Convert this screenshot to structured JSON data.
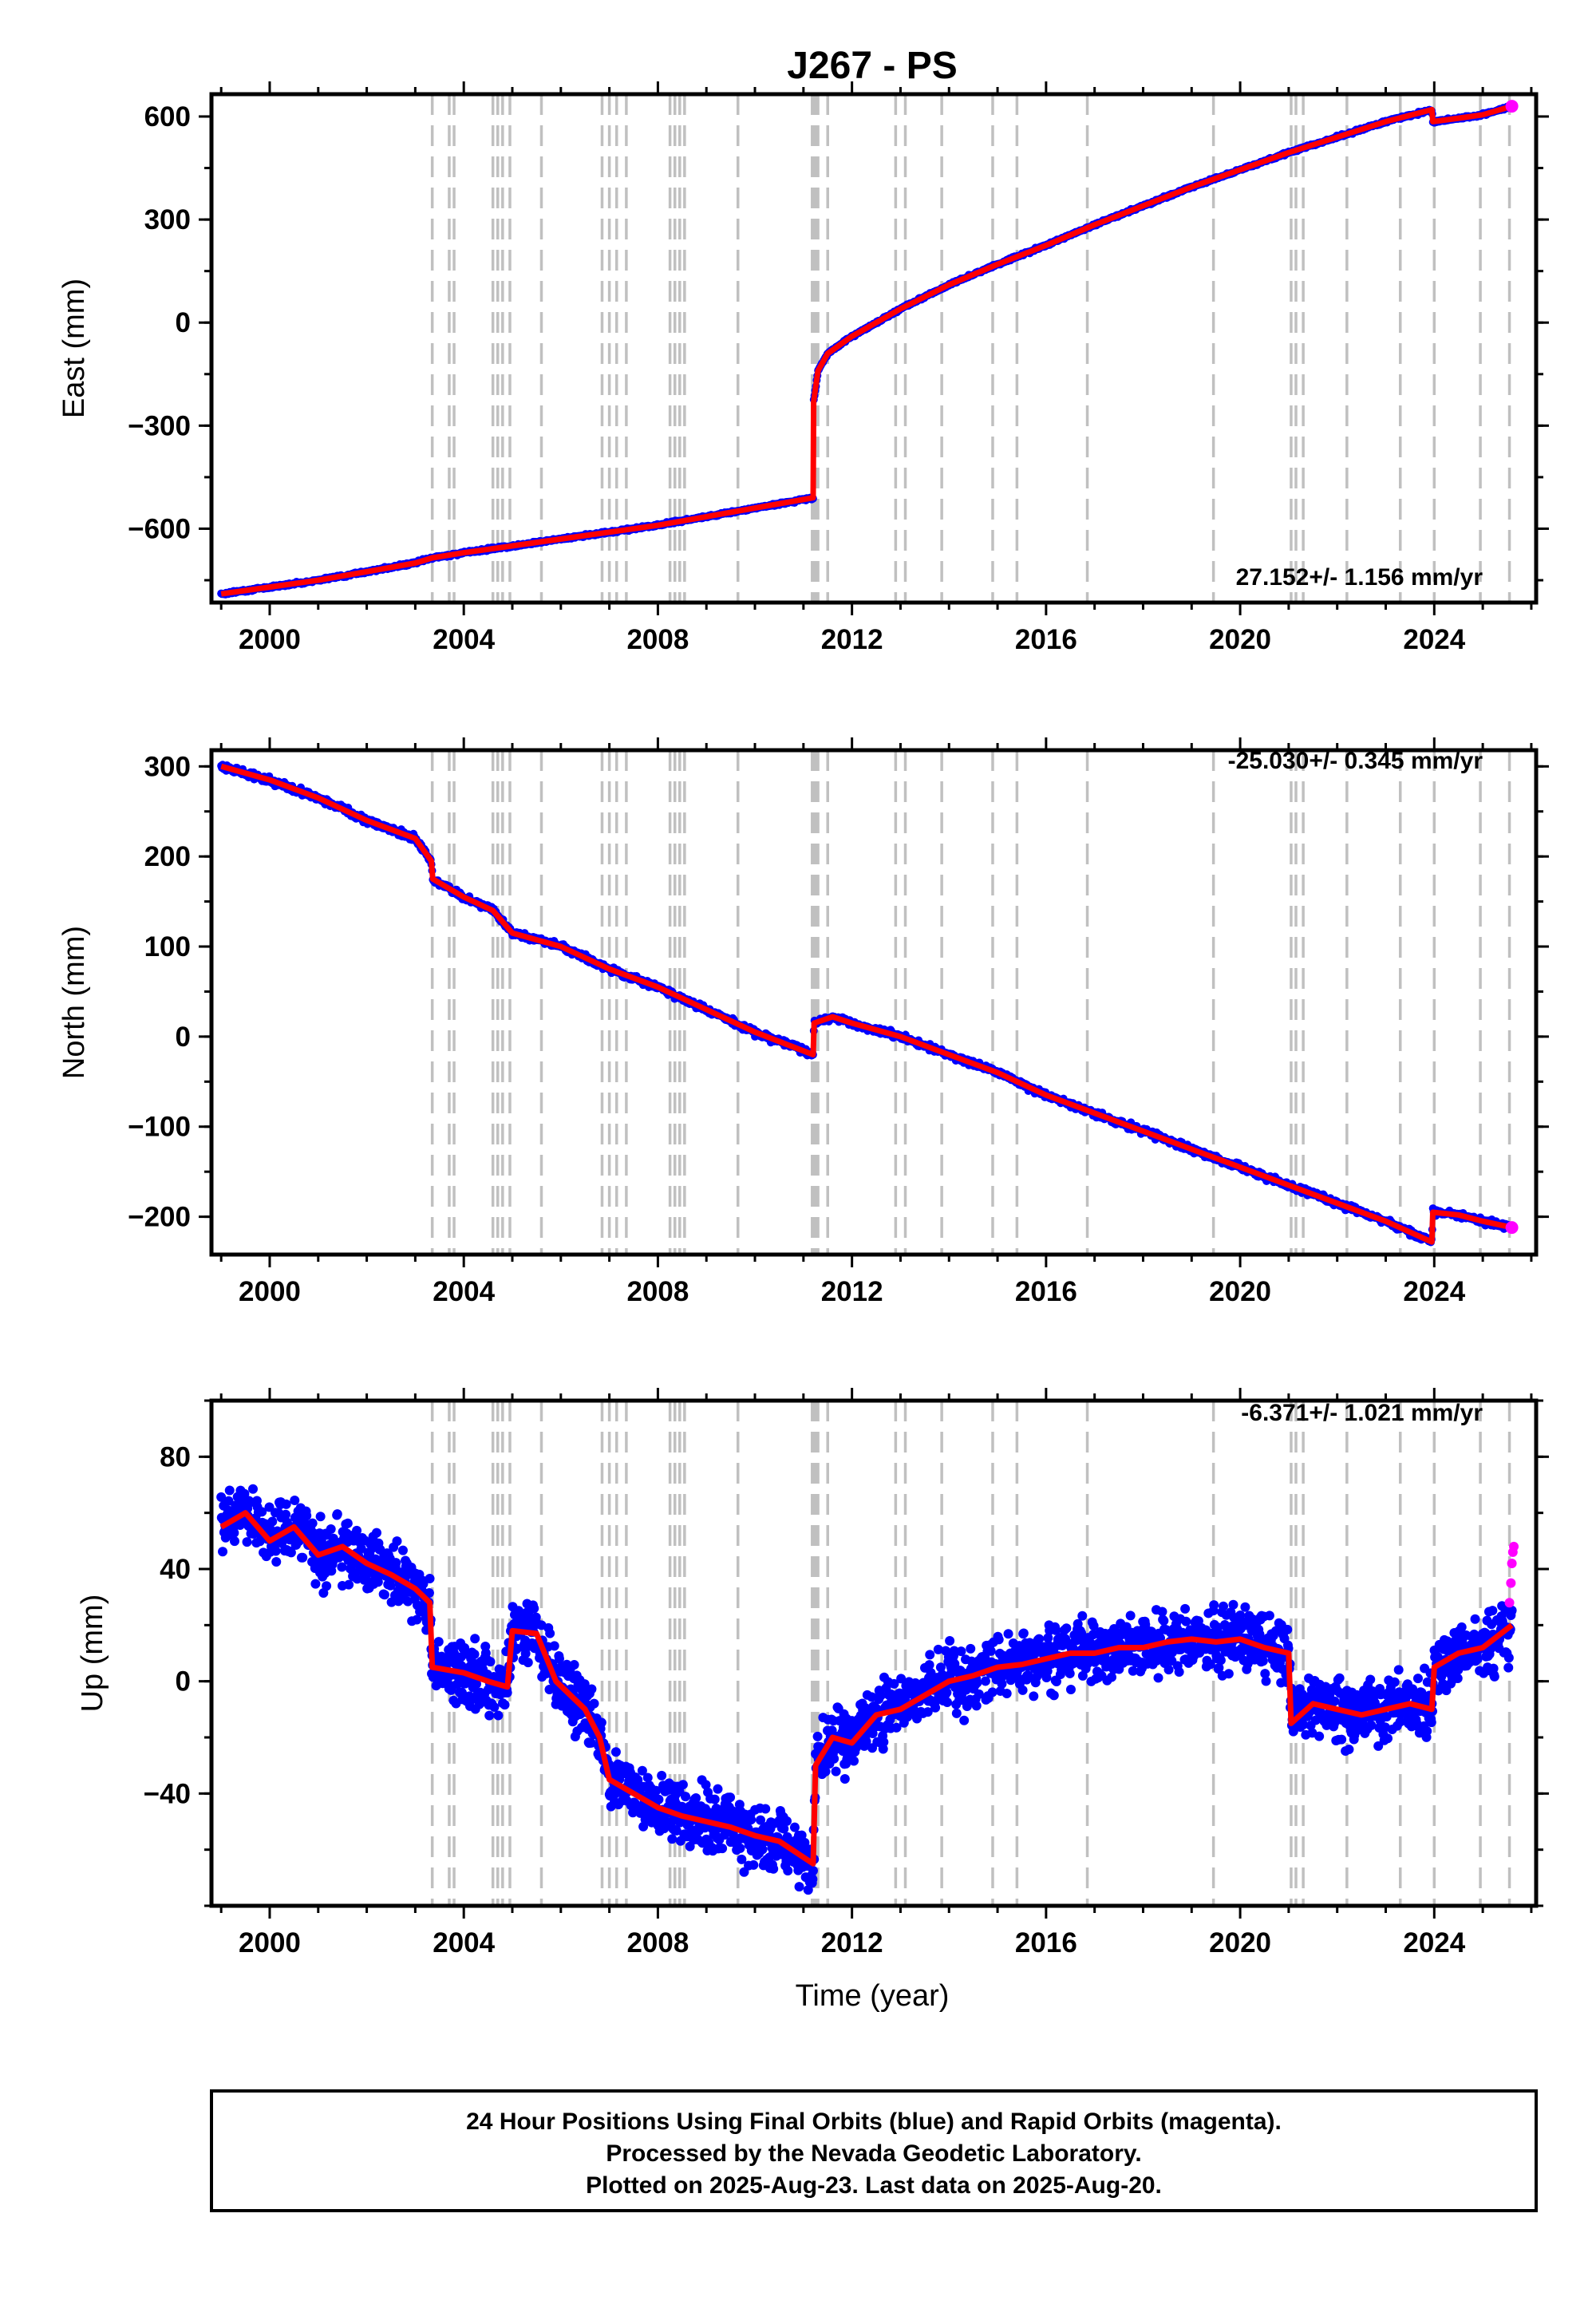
{
  "title": "J267 - PS",
  "xlabel": "Time (year)",
  "footer": {
    "lines": [
      "24 Hour Positions Using Final Orbits (blue) and Rapid Orbits (magenta).",
      "Processed by the Nevada Geodetic Laboratory.",
      "Plotted on 2025-Aug-23. Last data on 2025-Aug-20."
    ]
  },
  "colors": {
    "final_orbits": "#0000ff",
    "rapid_orbits": "#ff00ff",
    "model": "#ff0000",
    "event_lines": "#c0c0c0"
  },
  "event_years": [
    2003.35,
    2003.7,
    2003.8,
    2004.6,
    2004.7,
    2004.8,
    2004.95,
    2005.6,
    2006.85,
    2007.0,
    2007.15,
    2007.35,
    2008.25,
    2008.35,
    2008.45,
    2008.55,
    2009.65,
    2011.18,
    2011.22,
    2011.26,
    2011.3,
    2011.5,
    2012.9,
    2013.1,
    2013.85,
    2014.9,
    2015.4,
    2016.85,
    2019.45,
    2021.05,
    2021.15,
    2021.3,
    2022.2,
    2023.3,
    2024.0,
    2024.95,
    2025.55
  ],
  "chart_data": [
    {
      "type": "scatter",
      "ylabel": "East (mm)",
      "rate_label": "27.152+/- 1.156 mm/yr",
      "xlim": [
        1998.8,
        2026.1
      ],
      "ylim": [
        -815,
        665
      ],
      "xticks": [
        "2000",
        "2004",
        "2008",
        "2012",
        "2016",
        "2020",
        "2024"
      ],
      "yticks": [
        "-600",
        "-300",
        "0",
        "300",
        "600"
      ],
      "grid": false,
      "series": [
        {
          "x": [
            1999.0,
            2000.0,
            2001.0,
            2002.0,
            2003.0,
            2003.35,
            2004.0,
            2005.0,
            2006.0,
            2007.0,
            2008.0,
            2009.0,
            2010.0,
            2011.2,
            2011.21,
            2011.3,
            2011.5,
            2012.0,
            2013.0,
            2014.0,
            2015.0,
            2016.0,
            2017.0,
            2018.0,
            2019.0,
            2020.0,
            2021.0,
            2022.0,
            2023.0,
            2023.95,
            2023.97,
            2024.5,
            2025.0,
            2025.6
          ],
          "y": [
            -790,
            -770,
            -750,
            -725,
            -700,
            -685,
            -670,
            -650,
            -630,
            -610,
            -590,
            -565,
            -540,
            -510,
            -230,
            -140,
            -90,
            -40,
            40,
            110,
            170,
            225,
            285,
            340,
            395,
            445,
            495,
            540,
            585,
            620,
            585,
            595,
            605,
            630
          ]
        }
      ]
    },
    {
      "type": "scatter",
      "ylabel": "North (mm)",
      "rate_label": "-25.030+/- 0.345 mm/yr",
      "xlim": [
        1998.8,
        2026.1
      ],
      "ylim": [
        -242,
        318
      ],
      "xticks": [
        "2000",
        "2004",
        "2008",
        "2012",
        "2016",
        "2020",
        "2024"
      ],
      "yticks": [
        "-200",
        "-100",
        "0",
        "100",
        "200",
        "300"
      ],
      "grid": false,
      "series": [
        {
          "x": [
            1999.0,
            2000.0,
            2001.0,
            2002.0,
            2003.0,
            2003.33,
            2003.36,
            2004.0,
            2004.6,
            2005.0,
            2006.0,
            2007.0,
            2008.0,
            2009.0,
            2010.0,
            2011.2,
            2011.22,
            2011.6,
            2012.0,
            2013.0,
            2014.0,
            2015.0,
            2016.0,
            2017.0,
            2018.0,
            2019.0,
            2020.0,
            2021.0,
            2022.0,
            2023.0,
            2023.95,
            2023.97,
            2024.5,
            2025.0,
            2025.6
          ],
          "y": [
            300,
            285,
            265,
            240,
            220,
            195,
            175,
            155,
            140,
            115,
            100,
            75,
            55,
            30,
            5,
            -20,
            15,
            22,
            15,
            0,
            -20,
            -40,
            -65,
            -85,
            -105,
            -125,
            -145,
            -165,
            -185,
            -205,
            -228,
            -195,
            -198,
            -205,
            -212
          ]
        }
      ]
    },
    {
      "type": "scatter",
      "ylabel": "Up (mm)",
      "rate_label": "-6.371+/- 1.021 mm/yr",
      "xlim": [
        1998.8,
        2026.1
      ],
      "ylim": [
        -80,
        100
      ],
      "xticks": [
        "2000",
        "2004",
        "2008",
        "2012",
        "2016",
        "2020",
        "2024"
      ],
      "yticks": [
        "-40",
        "0",
        "40",
        "80"
      ],
      "grid": false,
      "series": [
        {
          "x": [
            1999.0,
            1999.5,
            2000.0,
            2000.5,
            2001.0,
            2001.5,
            2002.0,
            2002.5,
            2003.0,
            2003.3,
            2003.35,
            2004.0,
            2004.5,
            2004.9,
            2005.0,
            2005.5,
            2005.9,
            2006.5,
            2006.8,
            2007.0,
            2007.5,
            2008.0,
            2008.5,
            2009.0,
            2009.5,
            2010.0,
            2010.5,
            2011.2,
            2011.25,
            2011.6,
            2012.0,
            2012.5,
            2013.0,
            2013.5,
            2014.0,
            2014.5,
            2015.0,
            2015.5,
            2016.0,
            2016.5,
            2017.0,
            2017.5,
            2018.0,
            2018.5,
            2019.0,
            2019.5,
            2020.0,
            2020.5,
            2021.0,
            2021.05,
            2021.5,
            2022.0,
            2022.5,
            2023.0,
            2023.5,
            2023.95,
            2024.0,
            2024.5,
            2025.0,
            2025.6
          ],
          "y": [
            55,
            60,
            50,
            55,
            45,
            48,
            42,
            38,
            33,
            28,
            5,
            3,
            0,
            -2,
            18,
            17,
            0,
            -10,
            -20,
            -35,
            -40,
            -45,
            -48,
            -50,
            -52,
            -55,
            -57,
            -65,
            -30,
            -20,
            -22,
            -12,
            -10,
            -5,
            0,
            2,
            5,
            6,
            8,
            10,
            10,
            12,
            12,
            14,
            15,
            14,
            15,
            12,
            10,
            -15,
            -8,
            -10,
            -12,
            -10,
            -8,
            -10,
            5,
            10,
            12,
            20
          ]
        },
        {
          "name": "",
          "x": [
            2025.55,
            2025.58,
            2025.6,
            2025.62,
            2025.64
          ],
          "y": [
            28,
            35,
            42,
            46,
            48
          ]
        }
      ]
    }
  ]
}
